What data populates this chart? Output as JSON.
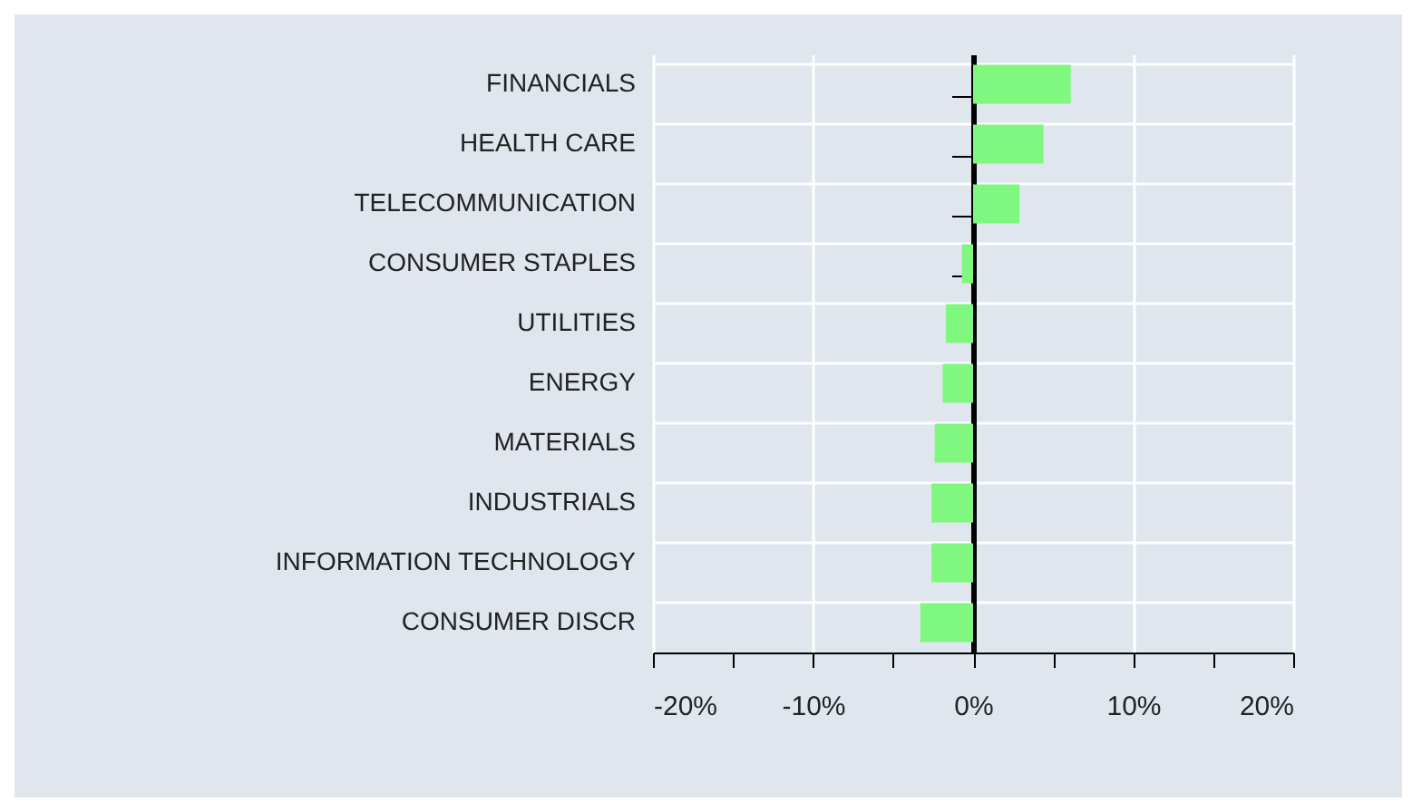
{
  "chart_data": {
    "type": "bar",
    "orientation": "horizontal",
    "categories": [
      "FINANCIALS",
      "HEALTH CARE",
      "TELECOMMUNICATION",
      "CONSUMER STAPLES",
      "UTILITIES",
      "ENERGY",
      "MATERIALS",
      "INDUSTRIALS",
      "INFORMATION TECHNOLOGY",
      "CONSUMER DISCR"
    ],
    "values": [
      6.1,
      4.4,
      2.9,
      -0.7,
      -1.7,
      -1.9,
      -2.4,
      -2.6,
      -2.6,
      -3.3
    ],
    "color": "#80f880",
    "xlim": [
      -20,
      20
    ],
    "xticks": [
      {
        "value": -20,
        "label": "-20%"
      },
      {
        "value": -15,
        "label": null
      },
      {
        "value": -10,
        "label": "-10%"
      },
      {
        "value": -5,
        "label": null
      },
      {
        "value": 0,
        "label": "0%"
      },
      {
        "value": 5,
        "label": null
      },
      {
        "value": 10,
        "label": "10%"
      },
      {
        "value": 15,
        "label": null
      },
      {
        "value": 20,
        "label": "20%"
      }
    ],
    "grid": true
  }
}
